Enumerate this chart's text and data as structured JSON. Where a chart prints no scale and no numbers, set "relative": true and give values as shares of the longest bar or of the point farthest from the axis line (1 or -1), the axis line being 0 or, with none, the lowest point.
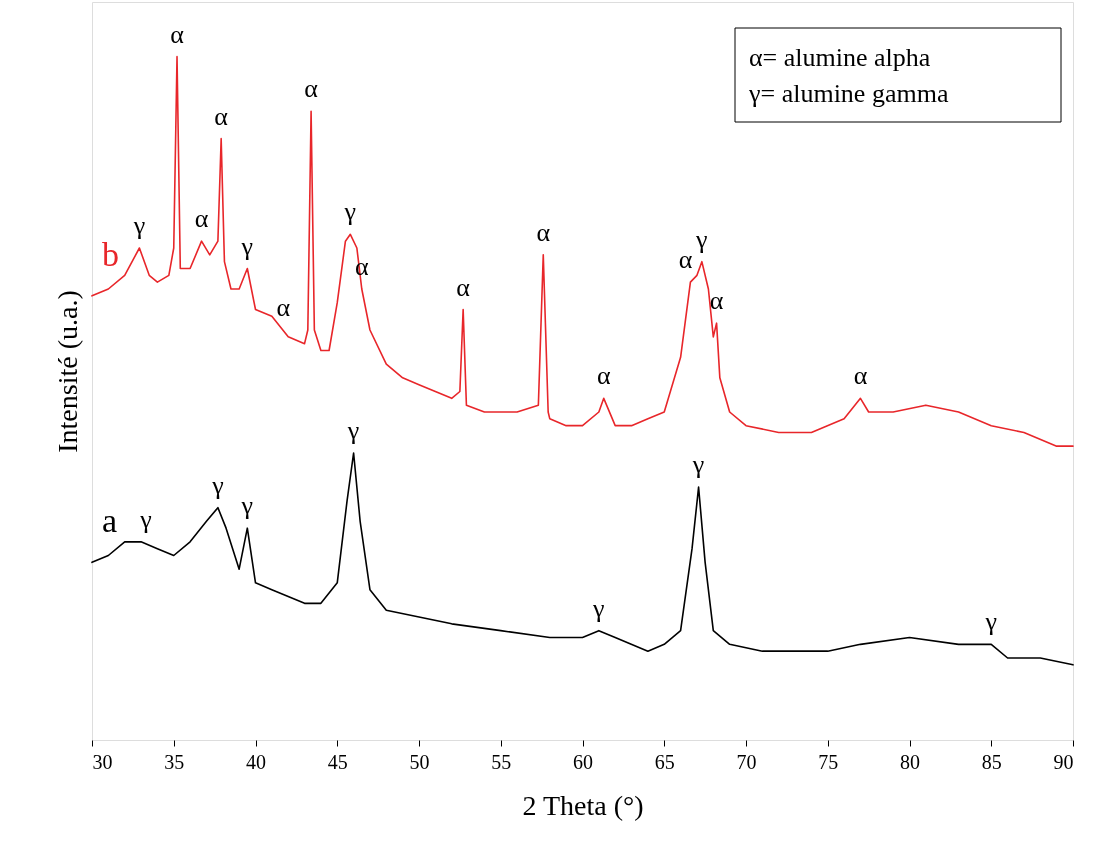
{
  "chart_data": {
    "type": "line",
    "relative": true,
    "xlabel": "2 Theta (°)",
    "ylabel": "Intensité (u.a.)",
    "xlim": [
      30,
      90
    ],
    "xticks": [
      30,
      35,
      40,
      45,
      50,
      55,
      60,
      65,
      70,
      75,
      80,
      85,
      90
    ],
    "tick_labels": "x",
    "grid": false,
    "series": [
      {
        "name": "b",
        "color": "#e8262a",
        "x": [
          30,
          31,
          32,
          32.9,
          33.5,
          34,
          34.7,
          35.0,
          35.2,
          35.4,
          36,
          36.7,
          37.2,
          37.7,
          37.9,
          38.1,
          38.5,
          39,
          39.5,
          40,
          41,
          42,
          43,
          43.2,
          43.4,
          43.6,
          44,
          44.5,
          45,
          45.5,
          45.8,
          46.2,
          46.5,
          47,
          48,
          49,
          50,
          51,
          52,
          52.5,
          52.7,
          52.9,
          54,
          55,
          56,
          57.3,
          57.6,
          57.9,
          58,
          59,
          60,
          61,
          61.3,
          62,
          63,
          64,
          65,
          66,
          66.6,
          67,
          67.3,
          67.7,
          68,
          68.2,
          68.4,
          69,
          70,
          72,
          74,
          76,
          77,
          77.5,
          79,
          81,
          83,
          85,
          87,
          89,
          90
        ],
        "values": [
          0.65,
          0.66,
          0.68,
          0.72,
          0.68,
          0.67,
          0.68,
          0.72,
          1.0,
          0.69,
          0.69,
          0.73,
          0.71,
          0.73,
          0.88,
          0.7,
          0.66,
          0.66,
          0.69,
          0.63,
          0.62,
          0.59,
          0.58,
          0.6,
          0.92,
          0.6,
          0.57,
          0.57,
          0.64,
          0.73,
          0.74,
          0.72,
          0.66,
          0.6,
          0.55,
          0.53,
          0.52,
          0.51,
          0.5,
          0.51,
          0.63,
          0.49,
          0.48,
          0.48,
          0.48,
          0.49,
          0.71,
          0.48,
          0.47,
          0.46,
          0.46,
          0.48,
          0.5,
          0.46,
          0.46,
          0.47,
          0.48,
          0.56,
          0.67,
          0.68,
          0.7,
          0.66,
          0.59,
          0.61,
          0.53,
          0.48,
          0.46,
          0.45,
          0.45,
          0.47,
          0.5,
          0.48,
          0.48,
          0.49,
          0.48,
          0.46,
          0.45,
          0.43,
          0.43
        ]
      },
      {
        "name": "a",
        "color": "#000000",
        "x": [
          30,
          31,
          32,
          33,
          34,
          35,
          36,
          37,
          37.7,
          38.2,
          39,
          39.5,
          40,
          41,
          42,
          43,
          44,
          45,
          45.6,
          46,
          46.4,
          47,
          48,
          50,
          52,
          55,
          58,
          60,
          61,
          62,
          64,
          65,
          66,
          66.7,
          67.1,
          67.5,
          68,
          69,
          71,
          75,
          77,
          80,
          83,
          85,
          86,
          88,
          90
        ],
        "values": [
          0.26,
          0.27,
          0.29,
          0.29,
          0.28,
          0.27,
          0.29,
          0.32,
          0.34,
          0.31,
          0.25,
          0.31,
          0.23,
          0.22,
          0.21,
          0.2,
          0.2,
          0.23,
          0.35,
          0.42,
          0.32,
          0.22,
          0.19,
          0.18,
          0.17,
          0.16,
          0.15,
          0.15,
          0.16,
          0.15,
          0.13,
          0.14,
          0.16,
          0.28,
          0.37,
          0.26,
          0.16,
          0.14,
          0.13,
          0.13,
          0.14,
          0.15,
          0.14,
          0.14,
          0.12,
          0.12,
          0.11
        ]
      }
    ],
    "annotations": [
      {
        "text": "γ",
        "x": 32.9,
        "y": 0.72
      },
      {
        "text": "α",
        "x": 35.2,
        "y": 1.0
      },
      {
        "text": "α",
        "x": 36.7,
        "y": 0.73
      },
      {
        "text": "α",
        "x": 37.9,
        "y": 0.88
      },
      {
        "text": "γ",
        "x": 39.5,
        "y": 0.69
      },
      {
        "text": "α",
        "x": 41.7,
        "y": 0.6
      },
      {
        "text": "α",
        "x": 43.4,
        "y": 0.92
      },
      {
        "text": "γ",
        "x": 45.8,
        "y": 0.74
      },
      {
        "text": "α",
        "x": 46.5,
        "y": 0.66
      },
      {
        "text": "α",
        "x": 52.7,
        "y": 0.63
      },
      {
        "text": "α",
        "x": 57.6,
        "y": 0.71
      },
      {
        "text": "α",
        "x": 61.3,
        "y": 0.5
      },
      {
        "text": "α",
        "x": 66.3,
        "y": 0.67
      },
      {
        "text": "γ",
        "x": 67.3,
        "y": 0.7
      },
      {
        "text": "α",
        "x": 68.2,
        "y": 0.61
      },
      {
        "text": "α",
        "x": 77,
        "y": 0.5
      },
      {
        "text": "γ",
        "x": 33.3,
        "y": 0.29
      },
      {
        "text": "γ",
        "x": 37.7,
        "y": 0.34
      },
      {
        "text": "γ",
        "x": 39.5,
        "y": 0.31
      },
      {
        "text": "γ",
        "x": 46,
        "y": 0.42
      },
      {
        "text": "γ",
        "x": 61,
        "y": 0.16
      },
      {
        "text": "γ",
        "x": 67.1,
        "y": 0.37
      },
      {
        "text": "γ",
        "x": 85,
        "y": 0.14
      },
      "α= alumine alpha",
      "γ= alumine gamma"
    ]
  }
}
